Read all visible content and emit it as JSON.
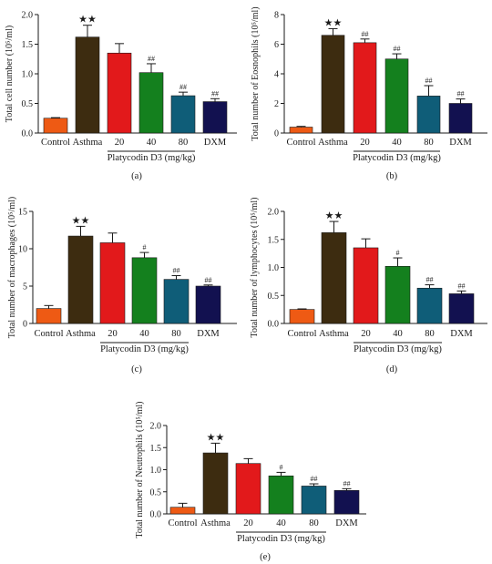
{
  "colors": [
    "#ee5a14",
    "#3d2c10",
    "#e2191b",
    "#14801e",
    "#0f5d78",
    "#121150"
  ],
  "group_label": "Platycodin D3 (mg/kg)",
  "chart_data": [
    {
      "type": "bar",
      "panel": "(a)",
      "ylabel": "Total cell number (10⁵/ml)",
      "categories": [
        "Control",
        "Asthma",
        "20",
        "40",
        "80",
        "DXM"
      ],
      "values": [
        0.25,
        1.62,
        1.35,
        1.02,
        0.63,
        0.53
      ],
      "errors": [
        0.01,
        0.2,
        0.16,
        0.15,
        0.06,
        0.05
      ],
      "marks": [
        "",
        "★★",
        "",
        "##",
        "##",
        "##"
      ],
      "ylim": [
        0,
        2.0
      ],
      "yticks": [
        "0.0",
        "0.5",
        "1.0",
        "1.5",
        "2.0"
      ]
    },
    {
      "type": "bar",
      "panel": "(b)",
      "ylabel": "Total number of Eosnophils (10⁵/ml)",
      "categories": [
        "Control",
        "Asthma",
        "20",
        "40",
        "80",
        "DXM"
      ],
      "values": [
        0.4,
        6.6,
        6.1,
        5.0,
        2.5,
        2.0
      ],
      "errors": [
        0.05,
        0.45,
        0.25,
        0.35,
        0.7,
        0.3
      ],
      "marks": [
        "",
        "★★",
        "##",
        "##",
        "##",
        "##"
      ],
      "ylim": [
        0,
        8
      ],
      "yticks": [
        "0",
        "2",
        "4",
        "6",
        "8"
      ]
    },
    {
      "type": "bar",
      "panel": "(c)",
      "ylabel": "Total number of macrophages (10⁵/ml)",
      "categories": [
        "Control",
        "Asthma",
        "20",
        "40",
        "80",
        "DXM"
      ],
      "values": [
        2.0,
        11.7,
        10.8,
        8.8,
        5.9,
        5.0
      ],
      "errors": [
        0.4,
        1.3,
        1.3,
        0.7,
        0.5,
        0.15
      ],
      "marks": [
        "",
        "★★",
        "",
        "#",
        "##",
        "##"
      ],
      "ylim": [
        0,
        15
      ],
      "yticks": [
        "0",
        "5",
        "10",
        "15"
      ]
    },
    {
      "type": "bar",
      "panel": "(d)",
      "ylabel": "Total number of lymphocytes (10⁵/ml)",
      "categories": [
        "Control",
        "Asthma",
        "20",
        "40",
        "80",
        "DXM"
      ],
      "values": [
        0.25,
        1.62,
        1.35,
        1.02,
        0.63,
        0.53
      ],
      "errors": [
        0.01,
        0.2,
        0.16,
        0.15,
        0.06,
        0.05
      ],
      "marks": [
        "",
        "★★",
        "",
        "#",
        "##",
        "##"
      ],
      "ylim": [
        0,
        2.0
      ],
      "yticks": [
        "0.0",
        "0.5",
        "1.0",
        "1.5",
        "2.0"
      ]
    },
    {
      "type": "bar",
      "panel": "(e)",
      "ylabel": "Total number of Neutrophils (10⁵/ml)",
      "categories": [
        "Control",
        "Asthma",
        "20",
        "40",
        "80",
        "DXM"
      ],
      "values": [
        0.15,
        1.38,
        1.14,
        0.86,
        0.63,
        0.53
      ],
      "errors": [
        0.09,
        0.22,
        0.11,
        0.08,
        0.05,
        0.04
      ],
      "marks": [
        "",
        "★★",
        "",
        "#",
        "##",
        "##"
      ],
      "ylim": [
        0,
        2.0
      ],
      "yticks": [
        "0.0",
        "0.5",
        "1.0",
        "1.5",
        "2.0"
      ]
    }
  ]
}
